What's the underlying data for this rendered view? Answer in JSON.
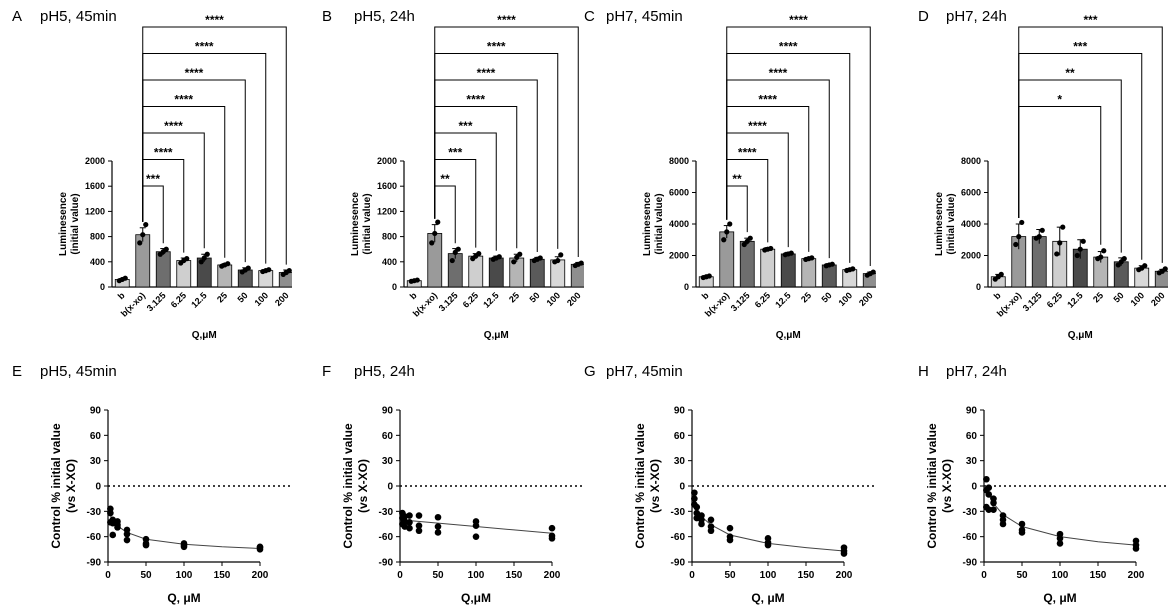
{
  "colors": {
    "ink": "#000000",
    "bar_b": "#cfcfcf",
    "bar_control": "#9a9a9a",
    "bar_shades": [
      "#6e6e6e",
      "#cfcfcf",
      "#4a4a4a",
      "#b5b5b5",
      "#5a5a5a",
      "#d8d8d8",
      "#8e8e8e"
    ]
  },
  "chart_data": [
    {
      "letter": "A",
      "title": "pH5, 45min",
      "type": "bar",
      "xlabel": "Q,μM",
      "ylabel": [
        "Luminesence",
        "(initial value)"
      ],
      "categories": [
        "b",
        "b(x-xo)",
        "3.125",
        "6.25",
        "12.5",
        "25",
        "50",
        "100",
        "200"
      ],
      "values": [
        120,
        830,
        560,
        420,
        460,
        350,
        270,
        260,
        230
      ],
      "errors": [
        15,
        110,
        50,
        40,
        60,
        20,
        35,
        15,
        40
      ],
      "points": [
        [
          100,
          120,
          140
        ],
        [
          700,
          830,
          990
        ],
        [
          520,
          560,
          600
        ],
        [
          380,
          420,
          450
        ],
        [
          400,
          460,
          520
        ],
        [
          330,
          350,
          370
        ],
        [
          240,
          270,
          300
        ],
        [
          245,
          260,
          275
        ],
        [
          200,
          230,
          260
        ]
      ],
      "ylim": [
        0,
        2000
      ],
      "yticks": [
        "0",
        "400",
        "800",
        "1200",
        "1600",
        "2000"
      ],
      "comparisons": [
        {
          "to": "3.125",
          "label": "***"
        },
        {
          "to": "6.25",
          "label": "****"
        },
        {
          "to": "12.5",
          "label": "****"
        },
        {
          "to": "25",
          "label": "****"
        },
        {
          "to": "50",
          "label": "****"
        },
        {
          "to": "100",
          "label": "****"
        },
        {
          "to": "200",
          "label": "****"
        }
      ]
    },
    {
      "letter": "B",
      "title": "pH5, 24h",
      "type": "bar",
      "xlabel": "Q,μM",
      "ylabel": [
        "Luminesence",
        "(initial value)"
      ],
      "categories": [
        "b",
        "b(x-xo)",
        "3.125",
        "6.25",
        "12.5",
        "25",
        "50",
        "100",
        "200"
      ],
      "values": [
        100,
        850,
        530,
        490,
        460,
        460,
        440,
        430,
        360
      ],
      "errors": [
        15,
        140,
        80,
        40,
        30,
        60,
        30,
        50,
        30
      ],
      "points": [
        [
          90,
          100,
          110
        ],
        [
          700,
          850,
          1030
        ],
        [
          420,
          550,
          600
        ],
        [
          450,
          490,
          530
        ],
        [
          440,
          460,
          480
        ],
        [
          400,
          470,
          520
        ],
        [
          420,
          440,
          460
        ],
        [
          400,
          420,
          510
        ],
        [
          340,
          360,
          380
        ]
      ],
      "ylim": [
        0,
        2000
      ],
      "yticks": [
        "0",
        "400",
        "800",
        "1200",
        "1600",
        "2000"
      ],
      "comparisons": [
        {
          "to": "3.125",
          "label": "**"
        },
        {
          "to": "6.25",
          "label": "***"
        },
        {
          "to": "12.5",
          "label": "***"
        },
        {
          "to": "25",
          "label": "****"
        },
        {
          "to": "50",
          "label": "****"
        },
        {
          "to": "100",
          "label": "****"
        },
        {
          "to": "200",
          "label": "****"
        }
      ]
    },
    {
      "letter": "C",
      "title": "pH7, 45min",
      "type": "bar",
      "xlabel": "Q,μM",
      "ylabel": [
        "Luminesence",
        "(initial value)"
      ],
      "categories": [
        "b",
        "b(x-xo)",
        "3.125",
        "6.25",
        "12.5",
        "25",
        "50",
        "100",
        "200"
      ],
      "values": [
        650,
        3500,
        2900,
        2400,
        2100,
        1800,
        1400,
        1100,
        850
      ],
      "errors": [
        60,
        400,
        200,
        100,
        100,
        80,
        80,
        80,
        100
      ],
      "points": [
        [
          600,
          650,
          700
        ],
        [
          3000,
          3500,
          4000
        ],
        [
          2700,
          2900,
          3100
        ],
        [
          2350,
          2400,
          2450
        ],
        [
          2050,
          2100,
          2150
        ],
        [
          1750,
          1800,
          1850
        ],
        [
          1350,
          1400,
          1450
        ],
        [
          1050,
          1100,
          1150
        ],
        [
          750,
          850,
          950
        ]
      ],
      "ylim": [
        0,
        8000
      ],
      "yticks": [
        "0",
        "2000",
        "4000",
        "6000",
        "8000"
      ],
      "comparisons": [
        {
          "to": "3.125",
          "label": "**"
        },
        {
          "to": "6.25",
          "label": "****"
        },
        {
          "to": "12.5",
          "label": "****"
        },
        {
          "to": "25",
          "label": "****"
        },
        {
          "to": "50",
          "label": "****"
        },
        {
          "to": "100",
          "label": "****"
        },
        {
          "to": "200",
          "label": "****"
        }
      ]
    },
    {
      "letter": "D",
      "title": "pH7, 24h",
      "type": "bar",
      "xlabel": "Q,μM",
      "ylabel": [
        "Luminesence",
        "(initial value)"
      ],
      "categories": [
        "b",
        "b(x-xo)",
        "3.125",
        "6.25",
        "12.5",
        "25",
        "50",
        "100",
        "200"
      ],
      "values": [
        650,
        3200,
        3200,
        2900,
        2400,
        1900,
        1600,
        1200,
        1000
      ],
      "errors": [
        150,
        800,
        450,
        900,
        600,
        350,
        250,
        150,
        120
      ],
      "points": [
        [
          500,
          650,
          800
        ],
        [
          2700,
          3200,
          4100
        ],
        [
          3100,
          3200,
          3600
        ],
        [
          2100,
          2800,
          3800
        ],
        [
          2000,
          2400,
          2900
        ],
        [
          1800,
          1900,
          2300
        ],
        [
          1400,
          1600,
          1800
        ],
        [
          1100,
          1200,
          1350
        ],
        [
          900,
          1000,
          1150
        ]
      ],
      "ylim": [
        0,
        8000
      ],
      "yticks": [
        "0",
        "2000",
        "4000",
        "6000",
        "8000"
      ],
      "comparisons": [
        {
          "to": "25",
          "label": "*"
        },
        {
          "to": "50",
          "label": "**"
        },
        {
          "to": "100",
          "label": "***"
        },
        {
          "to": "200",
          "label": "***"
        }
      ]
    },
    {
      "letter": "E",
      "title": "pH5, 45min",
      "type": "scatter",
      "xlabel": "Q, μM",
      "ylabel": [
        "Control % initial value",
        "(vs X-XO)"
      ],
      "xlim": [
        0,
        200
      ],
      "ylim": [
        -90,
        90
      ],
      "xticks": [
        "0",
        "50",
        "100",
        "150",
        "200"
      ],
      "yticks": [
        "90",
        "60",
        "30",
        "0",
        "-30",
        "-60",
        "-90"
      ],
      "points": [
        [
          3.125,
          -27
        ],
        [
          3.125,
          -32
        ],
        [
          3.125,
          -43
        ],
        [
          6.25,
          -40
        ],
        [
          6.25,
          -44
        ],
        [
          6.25,
          -58
        ],
        [
          12.5,
          -42
        ],
        [
          12.5,
          -46
        ],
        [
          12.5,
          -49
        ],
        [
          25,
          -52
        ],
        [
          25,
          -57
        ],
        [
          25,
          -64
        ],
        [
          50,
          -63
        ],
        [
          50,
          -68
        ],
        [
          50,
          -70
        ],
        [
          100,
          -68
        ],
        [
          100,
          -70
        ],
        [
          100,
          -72
        ],
        [
          200,
          -72
        ],
        [
          200,
          -73
        ],
        [
          200,
          -75
        ]
      ],
      "fit": [
        [
          1,
          -30
        ],
        [
          6,
          -41
        ],
        [
          12,
          -47
        ],
        [
          25,
          -55
        ],
        [
          50,
          -63
        ],
        [
          100,
          -69
        ],
        [
          150,
          -72
        ],
        [
          200,
          -74
        ]
      ],
      "reference_y": 0
    },
    {
      "letter": "F",
      "title": "pH5, 24h",
      "type": "scatter",
      "xlabel": "Q,μM",
      "ylabel": [
        "Control % initial value",
        "(vs X-XO)"
      ],
      "xlim": [
        0,
        200
      ],
      "ylim": [
        -90,
        90
      ],
      "xticks": [
        "0",
        "50",
        "100",
        "150",
        "200"
      ],
      "yticks": [
        "90",
        "60",
        "30",
        "0",
        "-30",
        "-60",
        "-90"
      ],
      "points": [
        [
          3.125,
          -32
        ],
        [
          3.125,
          -38
        ],
        [
          3.125,
          -45
        ],
        [
          6.25,
          -36
        ],
        [
          6.25,
          -42
        ],
        [
          6.25,
          -48
        ],
        [
          12.5,
          -35
        ],
        [
          12.5,
          -43
        ],
        [
          12.5,
          -50
        ],
        [
          25,
          -35
        ],
        [
          25,
          -47
        ],
        [
          25,
          -53
        ],
        [
          50,
          -37
        ],
        [
          50,
          -48
        ],
        [
          50,
          -55
        ],
        [
          100,
          -42
        ],
        [
          100,
          -47
        ],
        [
          100,
          -60
        ],
        [
          200,
          -50
        ],
        [
          200,
          -59
        ],
        [
          200,
          -62
        ]
      ],
      "fit": [
        [
          0,
          -40
        ],
        [
          50,
          -44
        ],
        [
          100,
          -48
        ],
        [
          150,
          -52
        ],
        [
          200,
          -56
        ]
      ],
      "reference_y": 0
    },
    {
      "letter": "G",
      "title": "pH7, 45min",
      "type": "scatter",
      "xlabel": "Q, μM",
      "ylabel": [
        "Control % initial value",
        "(vs X-XO)"
      ],
      "xlim": [
        0,
        200
      ],
      "ylim": [
        -90,
        90
      ],
      "xticks": [
        "0",
        "50",
        "100",
        "150",
        "200"
      ],
      "yticks": [
        "90",
        "60",
        "30",
        "0",
        "-30",
        "-60",
        "-90"
      ],
      "points": [
        [
          3.125,
          -8
        ],
        [
          3.125,
          -15
        ],
        [
          3.125,
          -22
        ],
        [
          6.25,
          -25
        ],
        [
          6.25,
          -32
        ],
        [
          6.25,
          -38
        ],
        [
          12.5,
          -35
        ],
        [
          12.5,
          -40
        ],
        [
          12.5,
          -45
        ],
        [
          25,
          -40
        ],
        [
          25,
          -48
        ],
        [
          25,
          -53
        ],
        [
          50,
          -50
        ],
        [
          50,
          -60
        ],
        [
          50,
          -64
        ],
        [
          100,
          -62
        ],
        [
          100,
          -67
        ],
        [
          100,
          -70
        ],
        [
          200,
          -73
        ],
        [
          200,
          -77
        ],
        [
          200,
          -80
        ]
      ],
      "fit": [
        [
          1,
          -12
        ],
        [
          6,
          -27
        ],
        [
          12,
          -36
        ],
        [
          25,
          -46
        ],
        [
          50,
          -58
        ],
        [
          100,
          -68
        ],
        [
          150,
          -73
        ],
        [
          200,
          -77
        ]
      ],
      "reference_y": 0
    },
    {
      "letter": "H",
      "title": "pH7, 24h",
      "type": "scatter",
      "xlabel": "Q, μM",
      "ylabel": [
        "Control % initial value",
        "(vs X-XO)"
      ],
      "xlim": [
        0,
        200
      ],
      "ylim": [
        -90,
        90
      ],
      "xticks": [
        "0",
        "50",
        "100",
        "150",
        "200"
      ],
      "yticks": [
        "90",
        "60",
        "30",
        "0",
        "-30",
        "-60",
        "-90"
      ],
      "points": [
        [
          3.125,
          8
        ],
        [
          3.125,
          -5
        ],
        [
          3.125,
          -25
        ],
        [
          6.25,
          -2
        ],
        [
          6.25,
          -10
        ],
        [
          6.25,
          -28
        ],
        [
          12.5,
          -15
        ],
        [
          12.5,
          -20
        ],
        [
          12.5,
          -28
        ],
        [
          25,
          -35
        ],
        [
          25,
          -40
        ],
        [
          25,
          -45
        ],
        [
          50,
          -45
        ],
        [
          50,
          -52
        ],
        [
          50,
          -55
        ],
        [
          100,
          -57
        ],
        [
          100,
          -62
        ],
        [
          100,
          -68
        ],
        [
          200,
          -65
        ],
        [
          200,
          -70
        ],
        [
          200,
          -74
        ]
      ],
      "fit": [
        [
          1,
          0
        ],
        [
          6,
          -10
        ],
        [
          12,
          -20
        ],
        [
          25,
          -34
        ],
        [
          50,
          -48
        ],
        [
          100,
          -60
        ],
        [
          150,
          -66
        ],
        [
          200,
          -70
        ]
      ],
      "reference_y": 0
    }
  ]
}
